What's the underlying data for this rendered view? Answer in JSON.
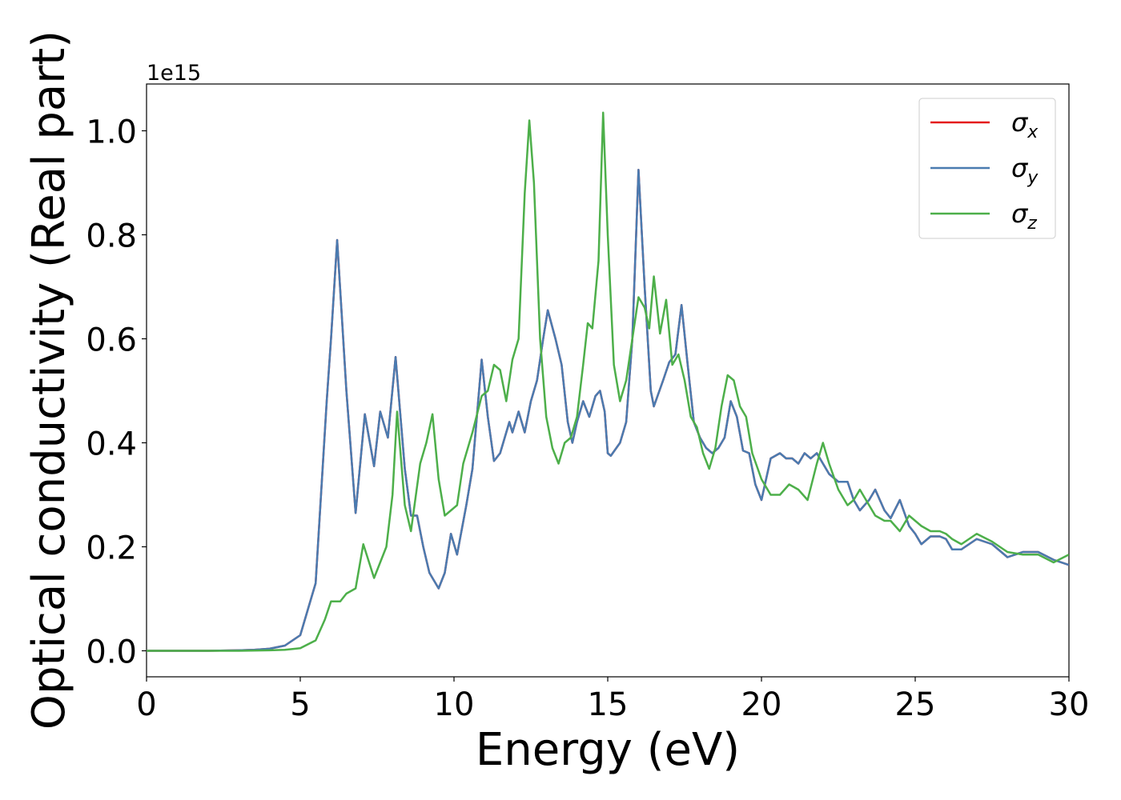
{
  "chart_data": {
    "type": "line",
    "xlabel": "Energy (eV)",
    "ylabel": "Optical conductivity (Real part)",
    "y_offset_label": "1e15",
    "xlim": [
      0,
      30
    ],
    "ylim": [
      -0.05,
      1.09
    ],
    "xticks": [
      0,
      5,
      10,
      15,
      20,
      25,
      30
    ],
    "yticks": [
      {
        "value": 0,
        "label": "0.0"
      },
      0.2,
      0.4,
      0.6,
      0.8,
      {
        "value": 1,
        "label": "1.0"
      }
    ],
    "legend": "upper right",
    "series": [
      {
        "name": "σx",
        "color": "#e41a1c",
        "x": [
          0,
          1,
          2,
          3,
          3.5,
          4,
          4.5,
          5,
          5.5,
          5.86,
          6,
          6.2,
          6.5,
          6.8,
          7.1,
          7.4,
          7.6,
          7.85,
          8.1,
          8.4,
          8.6,
          8.8,
          9,
          9.2,
          9.5,
          9.7,
          9.9,
          10.1,
          10.4,
          10.6,
          10.9,
          11.1,
          11.3,
          11.5,
          11.8,
          11.9,
          12.1,
          12.3,
          12.5,
          12.7,
          12.9,
          13.05,
          13.3,
          13.5,
          13.7,
          13.85,
          14,
          14.2,
          14.4,
          14.6,
          14.75,
          14.9,
          15,
          15.1,
          15.4,
          15.6,
          15.8,
          16,
          16.2,
          16.4,
          16.5,
          16.8,
          17,
          17.2,
          17.4,
          17.6,
          17.8,
          18,
          18.2,
          18.4,
          18.6,
          18.8,
          19,
          19.2,
          19.4,
          19.6,
          19.8,
          20,
          20.3,
          20.6,
          20.8,
          21,
          21.2,
          21.4,
          21.6,
          21.8,
          22,
          22.2,
          22.5,
          22.8,
          23,
          23.2,
          23.5,
          23.7,
          24,
          24.2,
          24.5,
          24.8,
          25,
          25.2,
          25.5,
          25.8,
          26,
          26.2,
          26.5,
          27,
          27.5,
          28,
          28.5,
          29,
          29.5,
          30
        ],
        "values": [
          0,
          0,
          0,
          0.001,
          0.002,
          0.004,
          0.01,
          0.03,
          0.13,
          0.48,
          0.6,
          0.79,
          0.5,
          0.265,
          0.455,
          0.355,
          0.46,
          0.41,
          0.565,
          0.35,
          0.26,
          0.26,
          0.2,
          0.15,
          0.12,
          0.15,
          0.225,
          0.185,
          0.28,
          0.35,
          0.56,
          0.45,
          0.365,
          0.38,
          0.44,
          0.42,
          0.46,
          0.42,
          0.48,
          0.52,
          0.6,
          0.655,
          0.6,
          0.55,
          0.44,
          0.4,
          0.44,
          0.48,
          0.45,
          0.49,
          0.5,
          0.46,
          0.38,
          0.375,
          0.4,
          0.44,
          0.6,
          0.925,
          0.7,
          0.5,
          0.47,
          0.52,
          0.555,
          0.57,
          0.665,
          0.55,
          0.44,
          0.41,
          0.39,
          0.38,
          0.39,
          0.41,
          0.48,
          0.45,
          0.385,
          0.38,
          0.32,
          0.29,
          0.37,
          0.38,
          0.37,
          0.37,
          0.36,
          0.38,
          0.37,
          0.38,
          0.36,
          0.34,
          0.325,
          0.325,
          0.29,
          0.27,
          0.29,
          0.31,
          0.27,
          0.255,
          0.29,
          0.24,
          0.225,
          0.205,
          0.22,
          0.22,
          0.215,
          0.195,
          0.195,
          0.215,
          0.205,
          0.18,
          0.19,
          0.19,
          0.175,
          0.165
        ]
      },
      {
        "name": "σy",
        "color": "#4a7bb0",
        "x": [
          0,
          1,
          2,
          3,
          3.5,
          4,
          4.5,
          5,
          5.5,
          5.86,
          6,
          6.2,
          6.5,
          6.8,
          7.1,
          7.4,
          7.6,
          7.85,
          8.1,
          8.4,
          8.6,
          8.8,
          9,
          9.2,
          9.5,
          9.7,
          9.9,
          10.1,
          10.4,
          10.6,
          10.9,
          11.1,
          11.3,
          11.5,
          11.8,
          11.9,
          12.1,
          12.3,
          12.5,
          12.7,
          12.9,
          13.05,
          13.3,
          13.5,
          13.7,
          13.85,
          14,
          14.2,
          14.4,
          14.6,
          14.75,
          14.9,
          15,
          15.1,
          15.4,
          15.6,
          15.8,
          16,
          16.2,
          16.4,
          16.5,
          16.8,
          17,
          17.2,
          17.4,
          17.6,
          17.8,
          18,
          18.2,
          18.4,
          18.6,
          18.8,
          19,
          19.2,
          19.4,
          19.6,
          19.8,
          20,
          20.3,
          20.6,
          20.8,
          21,
          21.2,
          21.4,
          21.6,
          21.8,
          22,
          22.2,
          22.5,
          22.8,
          23,
          23.2,
          23.5,
          23.7,
          24,
          24.2,
          24.5,
          24.8,
          25,
          25.2,
          25.5,
          25.8,
          26,
          26.2,
          26.5,
          27,
          27.5,
          28,
          28.5,
          29,
          29.5,
          30
        ],
        "values": [
          0,
          0,
          0,
          0.001,
          0.002,
          0.004,
          0.01,
          0.03,
          0.13,
          0.48,
          0.6,
          0.79,
          0.5,
          0.265,
          0.455,
          0.355,
          0.46,
          0.41,
          0.565,
          0.35,
          0.26,
          0.26,
          0.2,
          0.15,
          0.12,
          0.15,
          0.225,
          0.185,
          0.28,
          0.35,
          0.56,
          0.45,
          0.365,
          0.38,
          0.44,
          0.42,
          0.46,
          0.42,
          0.48,
          0.52,
          0.6,
          0.655,
          0.6,
          0.55,
          0.44,
          0.4,
          0.44,
          0.48,
          0.45,
          0.49,
          0.5,
          0.46,
          0.38,
          0.375,
          0.4,
          0.44,
          0.6,
          0.925,
          0.7,
          0.5,
          0.47,
          0.52,
          0.555,
          0.57,
          0.665,
          0.55,
          0.44,
          0.41,
          0.39,
          0.38,
          0.39,
          0.41,
          0.48,
          0.45,
          0.385,
          0.38,
          0.32,
          0.29,
          0.37,
          0.38,
          0.37,
          0.37,
          0.36,
          0.38,
          0.37,
          0.38,
          0.36,
          0.34,
          0.325,
          0.325,
          0.29,
          0.27,
          0.29,
          0.31,
          0.27,
          0.255,
          0.29,
          0.24,
          0.225,
          0.205,
          0.22,
          0.22,
          0.215,
          0.195,
          0.195,
          0.215,
          0.205,
          0.18,
          0.19,
          0.19,
          0.175,
          0.165
        ]
      },
      {
        "name": "σz",
        "color": "#4daf4a",
        "x": [
          0,
          1,
          2,
          3,
          4,
          4.5,
          5,
          5.5,
          5.8,
          6,
          6.3,
          6.5,
          6.8,
          7.05,
          7.4,
          7.8,
          8,
          8.15,
          8.4,
          8.6,
          8.9,
          9.1,
          9.3,
          9.5,
          9.7,
          9.9,
          10.1,
          10.3,
          10.6,
          10.9,
          11.1,
          11.3,
          11.5,
          11.7,
          11.9,
          12.1,
          12.3,
          12.45,
          12.6,
          12.8,
          13,
          13.2,
          13.4,
          13.6,
          13.8,
          14,
          14.2,
          14.35,
          14.5,
          14.7,
          14.85,
          15,
          15.2,
          15.4,
          15.6,
          15.8,
          16,
          16.2,
          16.35,
          16.5,
          16.7,
          16.9,
          17.1,
          17.3,
          17.5,
          17.7,
          17.9,
          18.1,
          18.3,
          18.5,
          18.7,
          18.9,
          19.1,
          19.3,
          19.5,
          19.7,
          20,
          20.3,
          20.6,
          20.9,
          21.2,
          21.5,
          21.8,
          22,
          22.2,
          22.5,
          22.8,
          23,
          23.2,
          23.5,
          23.7,
          24,
          24.2,
          24.5,
          24.8,
          25,
          25.2,
          25.5,
          25.8,
          26,
          26.2,
          26.5,
          27,
          27.5,
          28,
          28.5,
          29,
          29.5,
          30
        ],
        "values": [
          0,
          0,
          0,
          0,
          0.001,
          0.002,
          0.005,
          0.02,
          0.06,
          0.095,
          0.095,
          0.11,
          0.12,
          0.205,
          0.14,
          0.2,
          0.3,
          0.46,
          0.28,
          0.23,
          0.36,
          0.4,
          0.455,
          0.33,
          0.26,
          0.27,
          0.28,
          0.36,
          0.42,
          0.49,
          0.5,
          0.55,
          0.54,
          0.48,
          0.56,
          0.6,
          0.88,
          1.02,
          0.9,
          0.6,
          0.45,
          0.39,
          0.36,
          0.4,
          0.41,
          0.45,
          0.55,
          0.63,
          0.62,
          0.75,
          1.035,
          0.8,
          0.55,
          0.48,
          0.52,
          0.6,
          0.68,
          0.66,
          0.62,
          0.72,
          0.61,
          0.675,
          0.55,
          0.57,
          0.52,
          0.45,
          0.43,
          0.38,
          0.35,
          0.39,
          0.47,
          0.53,
          0.52,
          0.47,
          0.45,
          0.38,
          0.33,
          0.3,
          0.3,
          0.32,
          0.31,
          0.29,
          0.36,
          0.4,
          0.36,
          0.31,
          0.28,
          0.29,
          0.31,
          0.28,
          0.26,
          0.25,
          0.25,
          0.23,
          0.26,
          0.25,
          0.24,
          0.23,
          0.23,
          0.225,
          0.215,
          0.205,
          0.225,
          0.21,
          0.19,
          0.185,
          0.185,
          0.17,
          0.185
        ]
      }
    ]
  }
}
